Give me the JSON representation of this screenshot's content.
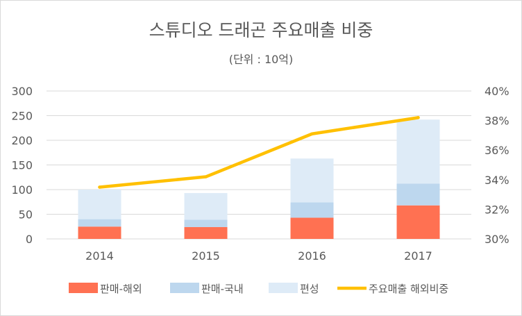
{
  "chart_data": {
    "type": "bar",
    "stacked": true,
    "title": "스튜디오 드래곤 주요매출 비중",
    "subtitle": "(단위 : 10억)",
    "categories": [
      "2014",
      "2015",
      "2016",
      "2017"
    ],
    "series": [
      {
        "name": "판매-해외",
        "kind": "bar",
        "axis": "left",
        "color": "#ff7152",
        "values": [
          25,
          24,
          43,
          68
        ]
      },
      {
        "name": "판매-국내",
        "kind": "bar",
        "axis": "left",
        "color": "#bdd7ee",
        "values": [
          15,
          15,
          31,
          44
        ]
      },
      {
        "name": "편성",
        "kind": "bar",
        "axis": "left",
        "color": "#deebf7",
        "values": [
          60,
          54,
          89,
          130
        ]
      },
      {
        "name": "주요매출 해외비중",
        "kind": "line",
        "axis": "right",
        "color": "#ffc000",
        "values": [
          33.5,
          34.2,
          37.1,
          38.2
        ]
      }
    ],
    "y_left": {
      "ylim": [
        0,
        300
      ],
      "ticks": [
        "0",
        "50",
        "100",
        "150",
        "200",
        "250",
        "300"
      ]
    },
    "y_right": {
      "ylim": [
        30,
        40
      ],
      "ticks": [
        "30%",
        "32%",
        "34%",
        "36%",
        "38%",
        "40%"
      ]
    },
    "grid": true,
    "legend": "bottom"
  }
}
